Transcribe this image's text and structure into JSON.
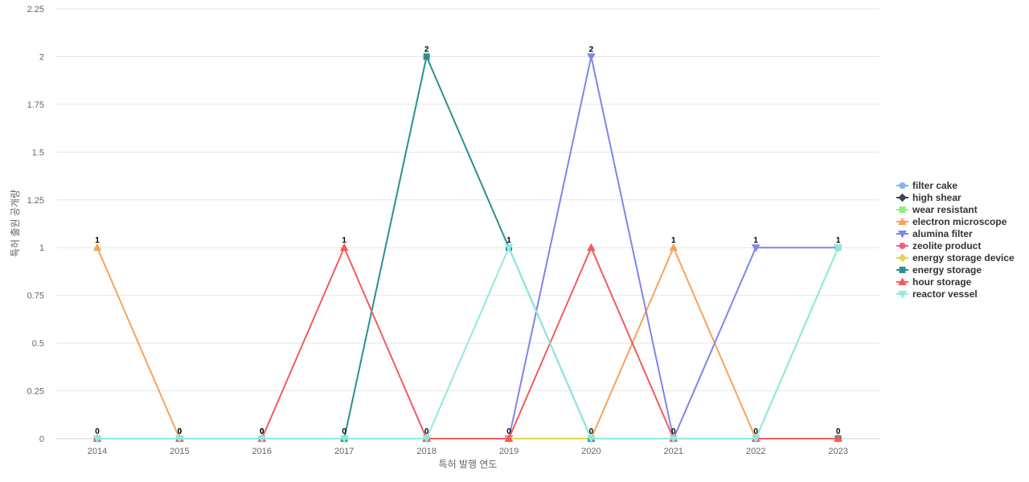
{
  "chart_data": {
    "type": "line",
    "title": "",
    "xlabel": "특허 발행 연도",
    "ylabel": "특허 출원 공개량",
    "ylim": [
      0,
      2.25
    ],
    "y_ticks": [
      "0",
      "0.25",
      "0.5",
      "0.75",
      "1",
      "1.25",
      "1.5",
      "1.75",
      "2",
      "2.25"
    ],
    "x": [
      "2014",
      "2015",
      "2016",
      "2017",
      "2018",
      "2019",
      "2020",
      "2021",
      "2022",
      "2023"
    ],
    "grid": "horizontal",
    "legend_position": "right",
    "data_labels": [
      "1",
      "0",
      "0",
      "1",
      "2",
      "1",
      "2",
      "1",
      "1",
      "1"
    ],
    "data_labels_bottom": [
      "0",
      "0",
      "0",
      "0",
      "0",
      "0",
      "0",
      "0",
      "0",
      "0"
    ],
    "series": [
      {
        "name": "filter cake",
        "color": "#7cb5ec",
        "marker": "circle",
        "values": [
          0,
          0,
          0,
          0,
          0,
          0,
          0,
          0,
          0,
          0
        ]
      },
      {
        "name": "high shear",
        "color": "#434348",
        "marker": "diamond",
        "values": [
          0,
          0,
          0,
          0,
          0,
          0,
          0,
          0,
          0,
          0
        ]
      },
      {
        "name": "wear resistant",
        "color": "#90ed7d",
        "marker": "square",
        "values": [
          0,
          0,
          0,
          0,
          0,
          0,
          0,
          0,
          0,
          1
        ]
      },
      {
        "name": "electron microscope",
        "color": "#f7a35c",
        "marker": "triangle",
        "values": [
          1,
          0,
          0,
          0,
          0,
          0,
          0,
          1,
          0,
          0
        ]
      },
      {
        "name": "alumina filter",
        "color": "#8085e9",
        "marker": "triangle-down",
        "values": [
          0,
          0,
          0,
          0,
          0,
          0,
          2,
          0,
          1,
          1
        ]
      },
      {
        "name": "zeolite product",
        "color": "#f15c80",
        "marker": "circle",
        "values": [
          0,
          0,
          0,
          0,
          0,
          0,
          0,
          0,
          0,
          0
        ]
      },
      {
        "name": "energy storage device",
        "color": "#e4d354",
        "marker": "diamond",
        "values": [
          0,
          0,
          0,
          0,
          0,
          0,
          0,
          0,
          0,
          0
        ]
      },
      {
        "name": "energy storage",
        "color": "#2b908f",
        "marker": "square",
        "values": [
          0,
          0,
          0,
          0,
          2,
          1,
          0,
          0,
          0,
          0
        ]
      },
      {
        "name": "hour storage",
        "color": "#f45b5b",
        "marker": "triangle",
        "values": [
          0,
          0,
          0,
          1,
          0,
          0,
          1,
          0,
          0,
          0
        ]
      },
      {
        "name": "reactor vessel",
        "color": "#91e8e1",
        "marker": "triangle-down",
        "values": [
          0,
          0,
          0,
          0,
          0,
          1,
          0,
          0,
          0,
          1
        ]
      }
    ]
  }
}
